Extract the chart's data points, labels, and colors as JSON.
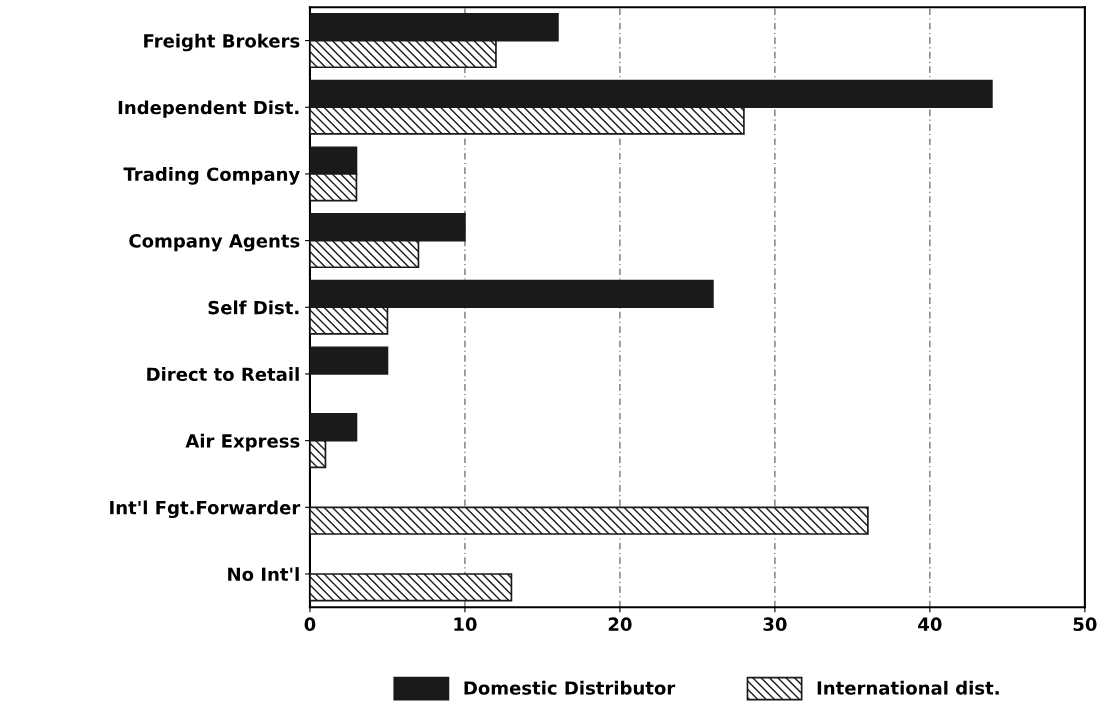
{
  "chart_data": {
    "type": "bar",
    "orientation": "horizontal",
    "categories": [
      "Freight Brokers",
      "Independent Dist.",
      "Trading Company",
      "Company Agents",
      "Self Dist.",
      "Direct to Retail",
      "Air Express",
      "Int'l Fgt.Forwarder",
      "No Int'l"
    ],
    "series": [
      {
        "name": "Domestic Distributor",
        "color": "#1a1a1a",
        "values": [
          16,
          44,
          3,
          10,
          26,
          5,
          3,
          null,
          null
        ]
      },
      {
        "name": "International dist.",
        "color": "#1a1a1a",
        "values": [
          12,
          28,
          3,
          7,
          5,
          null,
          1,
          36,
          13
        ]
      }
    ],
    "xlim": [
      0,
      50
    ],
    "xticks": [
      0,
      10,
      20,
      30,
      40,
      50
    ],
    "grid": "x",
    "legend": "bottom"
  }
}
